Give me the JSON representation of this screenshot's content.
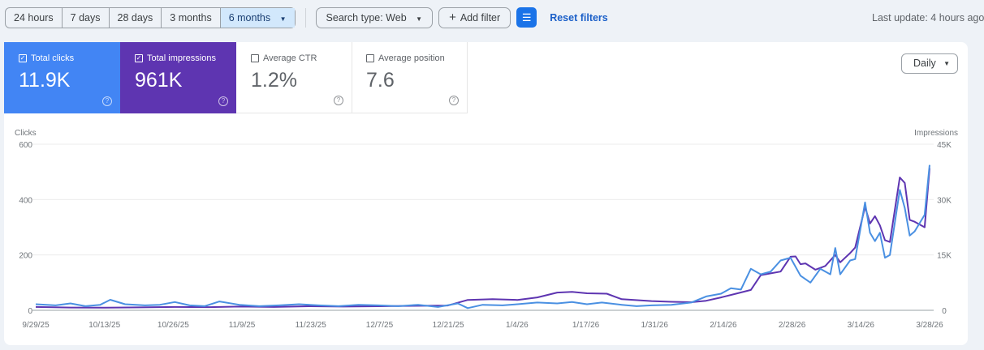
{
  "toolbar": {
    "ranges": [
      "24 hours",
      "7 days",
      "28 days",
      "3 months",
      "6 months"
    ],
    "selected_range": "6 months",
    "search_type": "Search type: Web",
    "add_filter": "Add filter",
    "reset_filters": "Reset filters",
    "last_update": "Last update: 4 hours ago"
  },
  "metrics": [
    {
      "label": "Total clicks",
      "value": "11.9K",
      "checked": true,
      "color": "#4285f4"
    },
    {
      "label": "Total impressions",
      "value": "961K",
      "checked": true,
      "color": "#5e35b1"
    },
    {
      "label": "Average CTR",
      "value": "1.2%",
      "checked": false
    },
    {
      "label": "Average position",
      "value": "7.6",
      "checked": false
    }
  ],
  "granularity": "Daily",
  "chart_data": {
    "type": "line",
    "left_axis": {
      "label": "Clicks",
      "ticks": [
        "0",
        "200",
        "400",
        "600"
      ],
      "range": [
        0,
        600
      ]
    },
    "right_axis": {
      "label": "Impressions",
      "ticks": [
        "0",
        "15K",
        "30K",
        "45K"
      ],
      "range": [
        0,
        45000
      ]
    },
    "x_ticks": [
      "9/29/25",
      "10/13/25",
      "10/26/25",
      "11/9/25",
      "11/23/25",
      "12/7/25",
      "12/21/25",
      "1/4/26",
      "1/17/26",
      "1/31/26",
      "2/14/26",
      "2/28/26",
      "3/14/26",
      "3/28/26"
    ],
    "x_range": [
      "2025-09-29",
      "2026-03-28"
    ],
    "grid": true,
    "series": [
      {
        "name": "Clicks",
        "axis": "left",
        "color": "#4a90e2",
        "points": [
          [
            "2025-09-29",
            22
          ],
          [
            "2025-10-03",
            18
          ],
          [
            "2025-10-06",
            25
          ],
          [
            "2025-10-09",
            15
          ],
          [
            "2025-10-12",
            20
          ],
          [
            "2025-10-14",
            38
          ],
          [
            "2025-10-17",
            22
          ],
          [
            "2025-10-21",
            18
          ],
          [
            "2025-10-24",
            20
          ],
          [
            "2025-10-27",
            30
          ],
          [
            "2025-10-30",
            18
          ],
          [
            "2025-11-02",
            15
          ],
          [
            "2025-11-05",
            32
          ],
          [
            "2025-11-09",
            20
          ],
          [
            "2025-11-13",
            15
          ],
          [
            "2025-11-17",
            18
          ],
          [
            "2025-11-21",
            22
          ],
          [
            "2025-11-25",
            18
          ],
          [
            "2025-11-29",
            15
          ],
          [
            "2025-12-03",
            20
          ],
          [
            "2025-12-07",
            18
          ],
          [
            "2025-12-11",
            15
          ],
          [
            "2025-12-15",
            20
          ],
          [
            "2025-12-19",
            12
          ],
          [
            "2025-12-23",
            25
          ],
          [
            "2025-12-25",
            8
          ],
          [
            "2025-12-28",
            20
          ],
          [
            "2026-01-01",
            18
          ],
          [
            "2026-01-04",
            22
          ],
          [
            "2026-01-08",
            28
          ],
          [
            "2026-01-12",
            25
          ],
          [
            "2026-01-15",
            30
          ],
          [
            "2026-01-18",
            22
          ],
          [
            "2026-01-21",
            28
          ],
          [
            "2026-01-25",
            20
          ],
          [
            "2026-01-28",
            15
          ],
          [
            "2026-01-31",
            18
          ],
          [
            "2026-02-04",
            20
          ],
          [
            "2026-02-08",
            28
          ],
          [
            "2026-02-11",
            50
          ],
          [
            "2026-02-14",
            60
          ],
          [
            "2026-02-16",
            80
          ],
          [
            "2026-02-18",
            75
          ],
          [
            "2026-02-20",
            150
          ],
          [
            "2026-02-22",
            130
          ],
          [
            "2026-02-24",
            140
          ],
          [
            "2026-02-26",
            180
          ],
          [
            "2026-02-28",
            190
          ],
          [
            "2026-03-02",
            125
          ],
          [
            "2026-03-04",
            100
          ],
          [
            "2026-03-06",
            150
          ],
          [
            "2026-03-08",
            130
          ],
          [
            "2026-03-09",
            225
          ],
          [
            "2026-03-10",
            130
          ],
          [
            "2026-03-12",
            180
          ],
          [
            "2026-03-13",
            185
          ],
          [
            "2026-03-15",
            390
          ],
          [
            "2026-03-16",
            280
          ],
          [
            "2026-03-17",
            250
          ],
          [
            "2026-03-18",
            280
          ],
          [
            "2026-03-19",
            190
          ],
          [
            "2026-03-20",
            200
          ],
          [
            "2026-03-22",
            435
          ],
          [
            "2026-03-23",
            370
          ],
          [
            "2026-03-24",
            270
          ],
          [
            "2026-03-25",
            285
          ],
          [
            "2026-03-27",
            345
          ],
          [
            "2026-03-28",
            525
          ]
        ]
      },
      {
        "name": "Impressions",
        "axis": "right",
        "color": "#5e35b1",
        "points": [
          [
            "2025-09-29",
            900
          ],
          [
            "2025-10-06",
            750
          ],
          [
            "2025-10-13",
            700
          ],
          [
            "2025-10-20",
            800
          ],
          [
            "2025-10-27",
            900
          ],
          [
            "2025-11-03",
            850
          ],
          [
            "2025-11-09",
            1000
          ],
          [
            "2025-11-16",
            900
          ],
          [
            "2025-11-23",
            1100
          ],
          [
            "2025-11-30",
            1000
          ],
          [
            "2025-12-07",
            1100
          ],
          [
            "2025-12-14",
            1200
          ],
          [
            "2025-12-21",
            1300
          ],
          [
            "2025-12-25",
            2800
          ],
          [
            "2025-12-30",
            3000
          ],
          [
            "2026-01-04",
            2800
          ],
          [
            "2026-01-08",
            3500
          ],
          [
            "2026-01-12",
            4800
          ],
          [
            "2026-01-15",
            5000
          ],
          [
            "2026-01-18",
            4600
          ],
          [
            "2026-01-22",
            4500
          ],
          [
            "2026-01-25",
            3000
          ],
          [
            "2026-01-31",
            2500
          ],
          [
            "2026-02-04",
            2300
          ],
          [
            "2026-02-08",
            2200
          ],
          [
            "2026-02-11",
            2600
          ],
          [
            "2026-02-14",
            3500
          ],
          [
            "2026-02-17",
            4500
          ],
          [
            "2026-02-20",
            5500
          ],
          [
            "2026-02-22",
            9500
          ],
          [
            "2026-02-24",
            10000
          ],
          [
            "2026-02-26",
            10500
          ],
          [
            "2026-02-28",
            14500
          ],
          [
            "2026-03-01",
            14600
          ],
          [
            "2026-03-02",
            12500
          ],
          [
            "2026-03-03",
            12700
          ],
          [
            "2026-03-05",
            11000
          ],
          [
            "2026-03-07",
            12000
          ],
          [
            "2026-03-09",
            15000
          ],
          [
            "2026-03-10",
            13000
          ],
          [
            "2026-03-12",
            15500
          ],
          [
            "2026-03-13",
            17000
          ],
          [
            "2026-03-15",
            28000
          ],
          [
            "2026-03-16",
            23500
          ],
          [
            "2026-03-17",
            25500
          ],
          [
            "2026-03-18",
            23000
          ],
          [
            "2026-03-19",
            19000
          ],
          [
            "2026-03-20",
            18500
          ],
          [
            "2026-03-22",
            36000
          ],
          [
            "2026-03-23",
            34500
          ],
          [
            "2026-03-24",
            24500
          ],
          [
            "2026-03-25",
            24000
          ],
          [
            "2026-03-27",
            22500
          ],
          [
            "2026-03-28",
            38500
          ]
        ]
      }
    ]
  }
}
